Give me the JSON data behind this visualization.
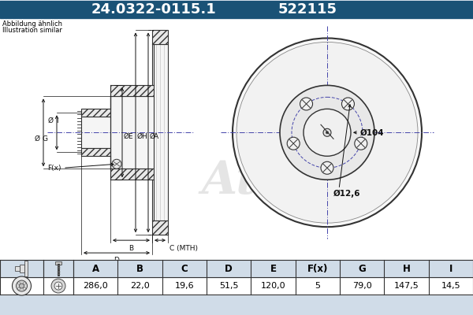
{
  "title_part_number": "24.0322-0115.1",
  "title_ref": "522115",
  "header_bg": "#1a5276",
  "header_text_color": "#ffffff",
  "bg_color": "#d0dce8",
  "diagram_bg": "#ffffff",
  "table_bg": "#ffffff",
  "table_header_bg": "#d0dce8",
  "note_line1": "Abbildung ähnlich",
  "note_line2": "Illustration similar",
  "dim_labels": [
    "A",
    "B",
    "C",
    "D",
    "E",
    "F(x)",
    "G",
    "H",
    "I"
  ],
  "dim_values": [
    "286,0",
    "22,0",
    "19,6",
    "51,5",
    "120,0",
    "5",
    "79,0",
    "147,5",
    "14,5"
  ],
  "annotation_104": "Ø104",
  "annotation_126": "Ø12,6",
  "line_color": "#333333",
  "dim_line_color": "#111111",
  "center_line_color": "#4444aa"
}
